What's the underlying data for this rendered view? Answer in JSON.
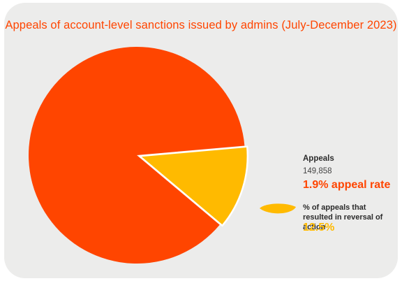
{
  "colors": {
    "accent": "#ff4500",
    "highlight": "#ffba00",
    "background": "#ececeb"
  },
  "chart_data": {
    "type": "pie",
    "title": "Appeals of account-level sanctions issued by admins (July-December 2023)",
    "slices": [
      {
        "name": "",
        "value": 87.5,
        "color": "#ff4500"
      },
      {
        "name": "% of appeals that resulted in reversal of action",
        "value": 12.5,
        "color": "#ffba00",
        "exploded": true
      }
    ],
    "annotations": {
      "appeals_heading": "Appeals",
      "appeals_count": "149,858",
      "appeal_rate": "1.9% appeal rate",
      "reversal_heading": "% of appeals that resulted in reversal of action",
      "reversal_value": "12.5%"
    }
  }
}
